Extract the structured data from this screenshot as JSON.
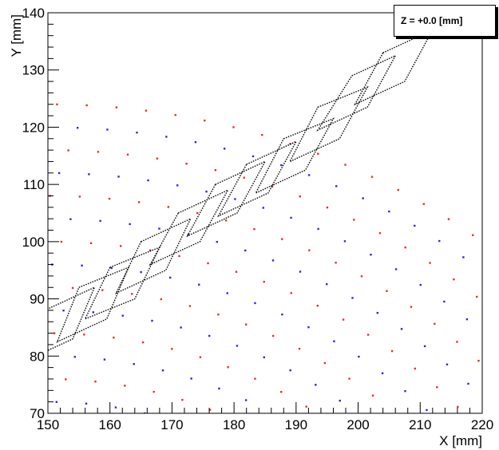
{
  "chart_data": {
    "type": "scatter",
    "title": "",
    "xlabel": "X [mm]",
    "ylabel": "Y [mm]",
    "xlim": [
      150,
      220
    ],
    "ylim": [
      70,
      140
    ],
    "x_ticks": [
      "150",
      "160",
      "170",
      "180",
      "190",
      "200",
      "210",
      "220"
    ],
    "y_ticks": [
      "70",
      "80",
      "90",
      "100",
      "110",
      "120",
      "130",
      "140"
    ],
    "grid": false,
    "annotation": "Z = +0.0 [mm]",
    "colors": {
      "red": "#e8302c",
      "blue": "#2b2bd6",
      "outline": "#000000"
    },
    "dot_rows": {
      "description_free": true,
      "center": [
        150,
        10
      ],
      "radii": [
        62,
        66,
        70,
        74,
        78,
        82,
        86,
        90,
        94,
        98,
        102,
        106,
        110,
        114
      ],
      "row_colors": [
        "blue",
        "red",
        "blue",
        "red",
        "blue",
        "red",
        "blue",
        "red",
        "blue",
        "red",
        "blue",
        "red",
        "blue",
        "red"
      ],
      "point_spacing": 4.8
    },
    "modules": [
      {
        "x": [
          149.5,
          157.5,
          154.0,
          146.0
        ],
        "y": [
          88.0,
          92.0,
          83.0,
          79.0
        ]
      },
      {
        "x": [
          155.0,
          163.0,
          159.5,
          151.5
        ],
        "y": [
          92.0,
          95.5,
          86.5,
          82.5
        ]
      },
      {
        "x": [
          160.0,
          168.0,
          164.0,
          156.0
        ],
        "y": [
          95.5,
          99.0,
          90.0,
          86.5
        ]
      },
      {
        "x": [
          165.0,
          173.0,
          169.0,
          161.0
        ],
        "y": [
          100.0,
          104.0,
          95.0,
          91.0
        ]
      },
      {
        "x": [
          171.0,
          179.0,
          174.5,
          166.5
        ],
        "y": [
          105.0,
          109.0,
          100.0,
          96.0
        ]
      },
      {
        "x": [
          177.0,
          185.0,
          180.5,
          172.5
        ],
        "y": [
          110.0,
          114.0,
          105.0,
          101.0
        ]
      },
      {
        "x": [
          182.0,
          190.0,
          185.5,
          177.5
        ],
        "y": [
          113.5,
          117.5,
          108.5,
          104.5
        ]
      },
      {
        "x": [
          188.0,
          196.0,
          191.5,
          183.5
        ],
        "y": [
          118.0,
          121.5,
          112.5,
          108.5
        ]
      },
      {
        "x": [
          193.5,
          201.5,
          197.0,
          189.0
        ],
        "y": [
          123.5,
          127.0,
          118.0,
          114.0
        ]
      },
      {
        "x": [
          199.0,
          206.0,
          201.5,
          193.5
        ],
        "y": [
          129.0,
          132.5,
          123.5,
          119.5
        ]
      },
      {
        "x": [
          204.0,
          212.0,
          207.5,
          199.5
        ],
        "y": [
          133.0,
          137.0,
          128.0,
          124.0
        ]
      }
    ]
  }
}
